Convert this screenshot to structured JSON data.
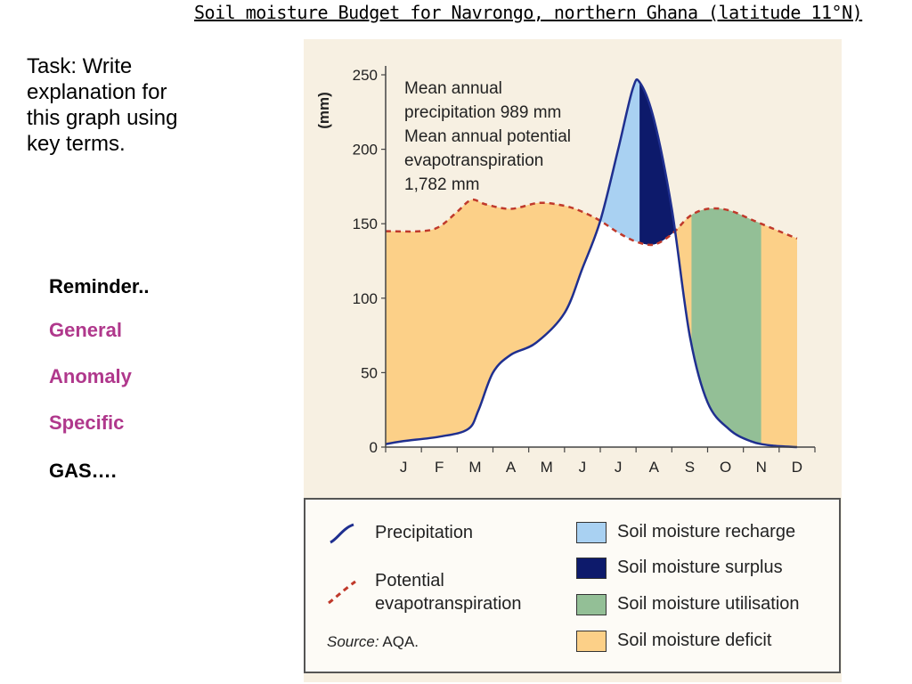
{
  "slide": {
    "title": "Soil moisture Budget for Navrongo, northern Ghana (latitude 11°N)",
    "task": "Task: Write explanation for this graph using key terms.",
    "reminder_title": "Reminder..",
    "reminder_items": [
      "General",
      "Anomaly",
      "Specific"
    ],
    "reminder_footer": "GAS…."
  },
  "chart_data": {
    "type": "line",
    "y_unit_label": "(mm)",
    "ylim": [
      0,
      250
    ],
    "yticks": [
      "0",
      "50",
      "100",
      "150",
      "200",
      "250"
    ],
    "categories": [
      "J",
      "F",
      "M",
      "A",
      "M",
      "J",
      "J",
      "A",
      "S",
      "O",
      "N",
      "D"
    ],
    "series": [
      {
        "name": "Precipitation",
        "x": [
          0,
          0.5,
          1.5,
          2.3,
          2.6,
          3.0,
          3.5,
          4.2,
          5.0,
          5.5,
          6.0,
          6.5,
          6.9,
          7.1,
          7.5,
          8.0,
          8.5,
          9.0,
          9.6,
          10.2,
          10.8,
          11.5
        ],
        "values": [
          2,
          4,
          7,
          12,
          25,
          50,
          62,
          70,
          90,
          120,
          152,
          200,
          240,
          245,
          220,
          160,
          75,
          30,
          12,
          4,
          1,
          0
        ],
        "color": "#1f2f8f",
        "style": "solid"
      },
      {
        "name": "Potential evapotranspiration",
        "x": [
          0,
          1.0,
          1.5,
          2.0,
          2.4,
          2.8,
          3.5,
          4.3,
          5.0,
          5.5,
          6.0,
          6.5,
          7.0,
          7.5,
          8.0,
          8.5,
          9.0,
          9.6,
          10.3,
          11.0,
          11.5
        ],
        "values": [
          145,
          145,
          148,
          158,
          166,
          163,
          160,
          164,
          162,
          158,
          152,
          144,
          138,
          136,
          143,
          155,
          160,
          159,
          152,
          145,
          140
        ],
        "color": "#c0392b",
        "style": "dashed"
      }
    ],
    "annotation": [
      "Mean annual",
      "precipitation 989 mm",
      "Mean annual potential",
      "evapotranspiration",
      "1,782 mm"
    ],
    "legend": [
      {
        "label": "Precipitation",
        "kind": "solid-line",
        "color": "#1f2f8f"
      },
      {
        "label": "Potential evapotranspiration",
        "label_lines": [
          "Potential",
          "evapotranspiration"
        ],
        "kind": "dashed-line",
        "color": "#c0392b"
      },
      {
        "label": "Soil moisture recharge",
        "kind": "swatch",
        "color": "#a9d1f2"
      },
      {
        "label": "Soil moisture surplus",
        "kind": "swatch",
        "color": "#0d1a6b"
      },
      {
        "label": "Soil moisture utilisation",
        "kind": "swatch",
        "color": "#93bf96"
      },
      {
        "label": "Soil moisture deficit",
        "kind": "swatch",
        "color": "#fcd088"
      }
    ],
    "source_prefix": "Source:",
    "source_value": "AQA.",
    "grid": false,
    "legend_position": "bottom"
  }
}
